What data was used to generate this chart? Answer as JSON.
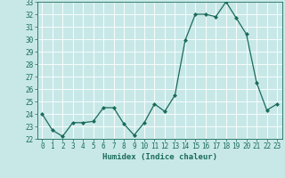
{
  "x": [
    0,
    1,
    2,
    3,
    4,
    5,
    6,
    7,
    8,
    9,
    10,
    11,
    12,
    13,
    14,
    15,
    16,
    17,
    18,
    19,
    20,
    21,
    22,
    23
  ],
  "y": [
    24.0,
    22.7,
    22.2,
    23.3,
    23.3,
    23.4,
    24.5,
    24.5,
    23.2,
    22.3,
    23.3,
    24.8,
    24.2,
    25.5,
    29.9,
    32.0,
    32.0,
    31.8,
    33.0,
    31.7,
    30.4,
    26.5,
    24.3,
    24.8
  ],
  "line_color": "#1a6b5a",
  "marker": "D",
  "marker_size": 2.0,
  "bg_color": "#c8e8e8",
  "grid_color": "#ffffff",
  "xlabel": "Humidex (Indice chaleur)",
  "ylim": [
    22,
    33
  ],
  "xlim": [
    -0.5,
    23.5
  ],
  "yticks": [
    22,
    23,
    24,
    25,
    26,
    27,
    28,
    29,
    30,
    31,
    32,
    33
  ],
  "xticks": [
    0,
    1,
    2,
    3,
    4,
    5,
    6,
    7,
    8,
    9,
    10,
    11,
    12,
    13,
    14,
    15,
    16,
    17,
    18,
    19,
    20,
    21,
    22,
    23
  ],
  "label_fontsize": 6.5,
  "tick_fontsize": 5.5
}
